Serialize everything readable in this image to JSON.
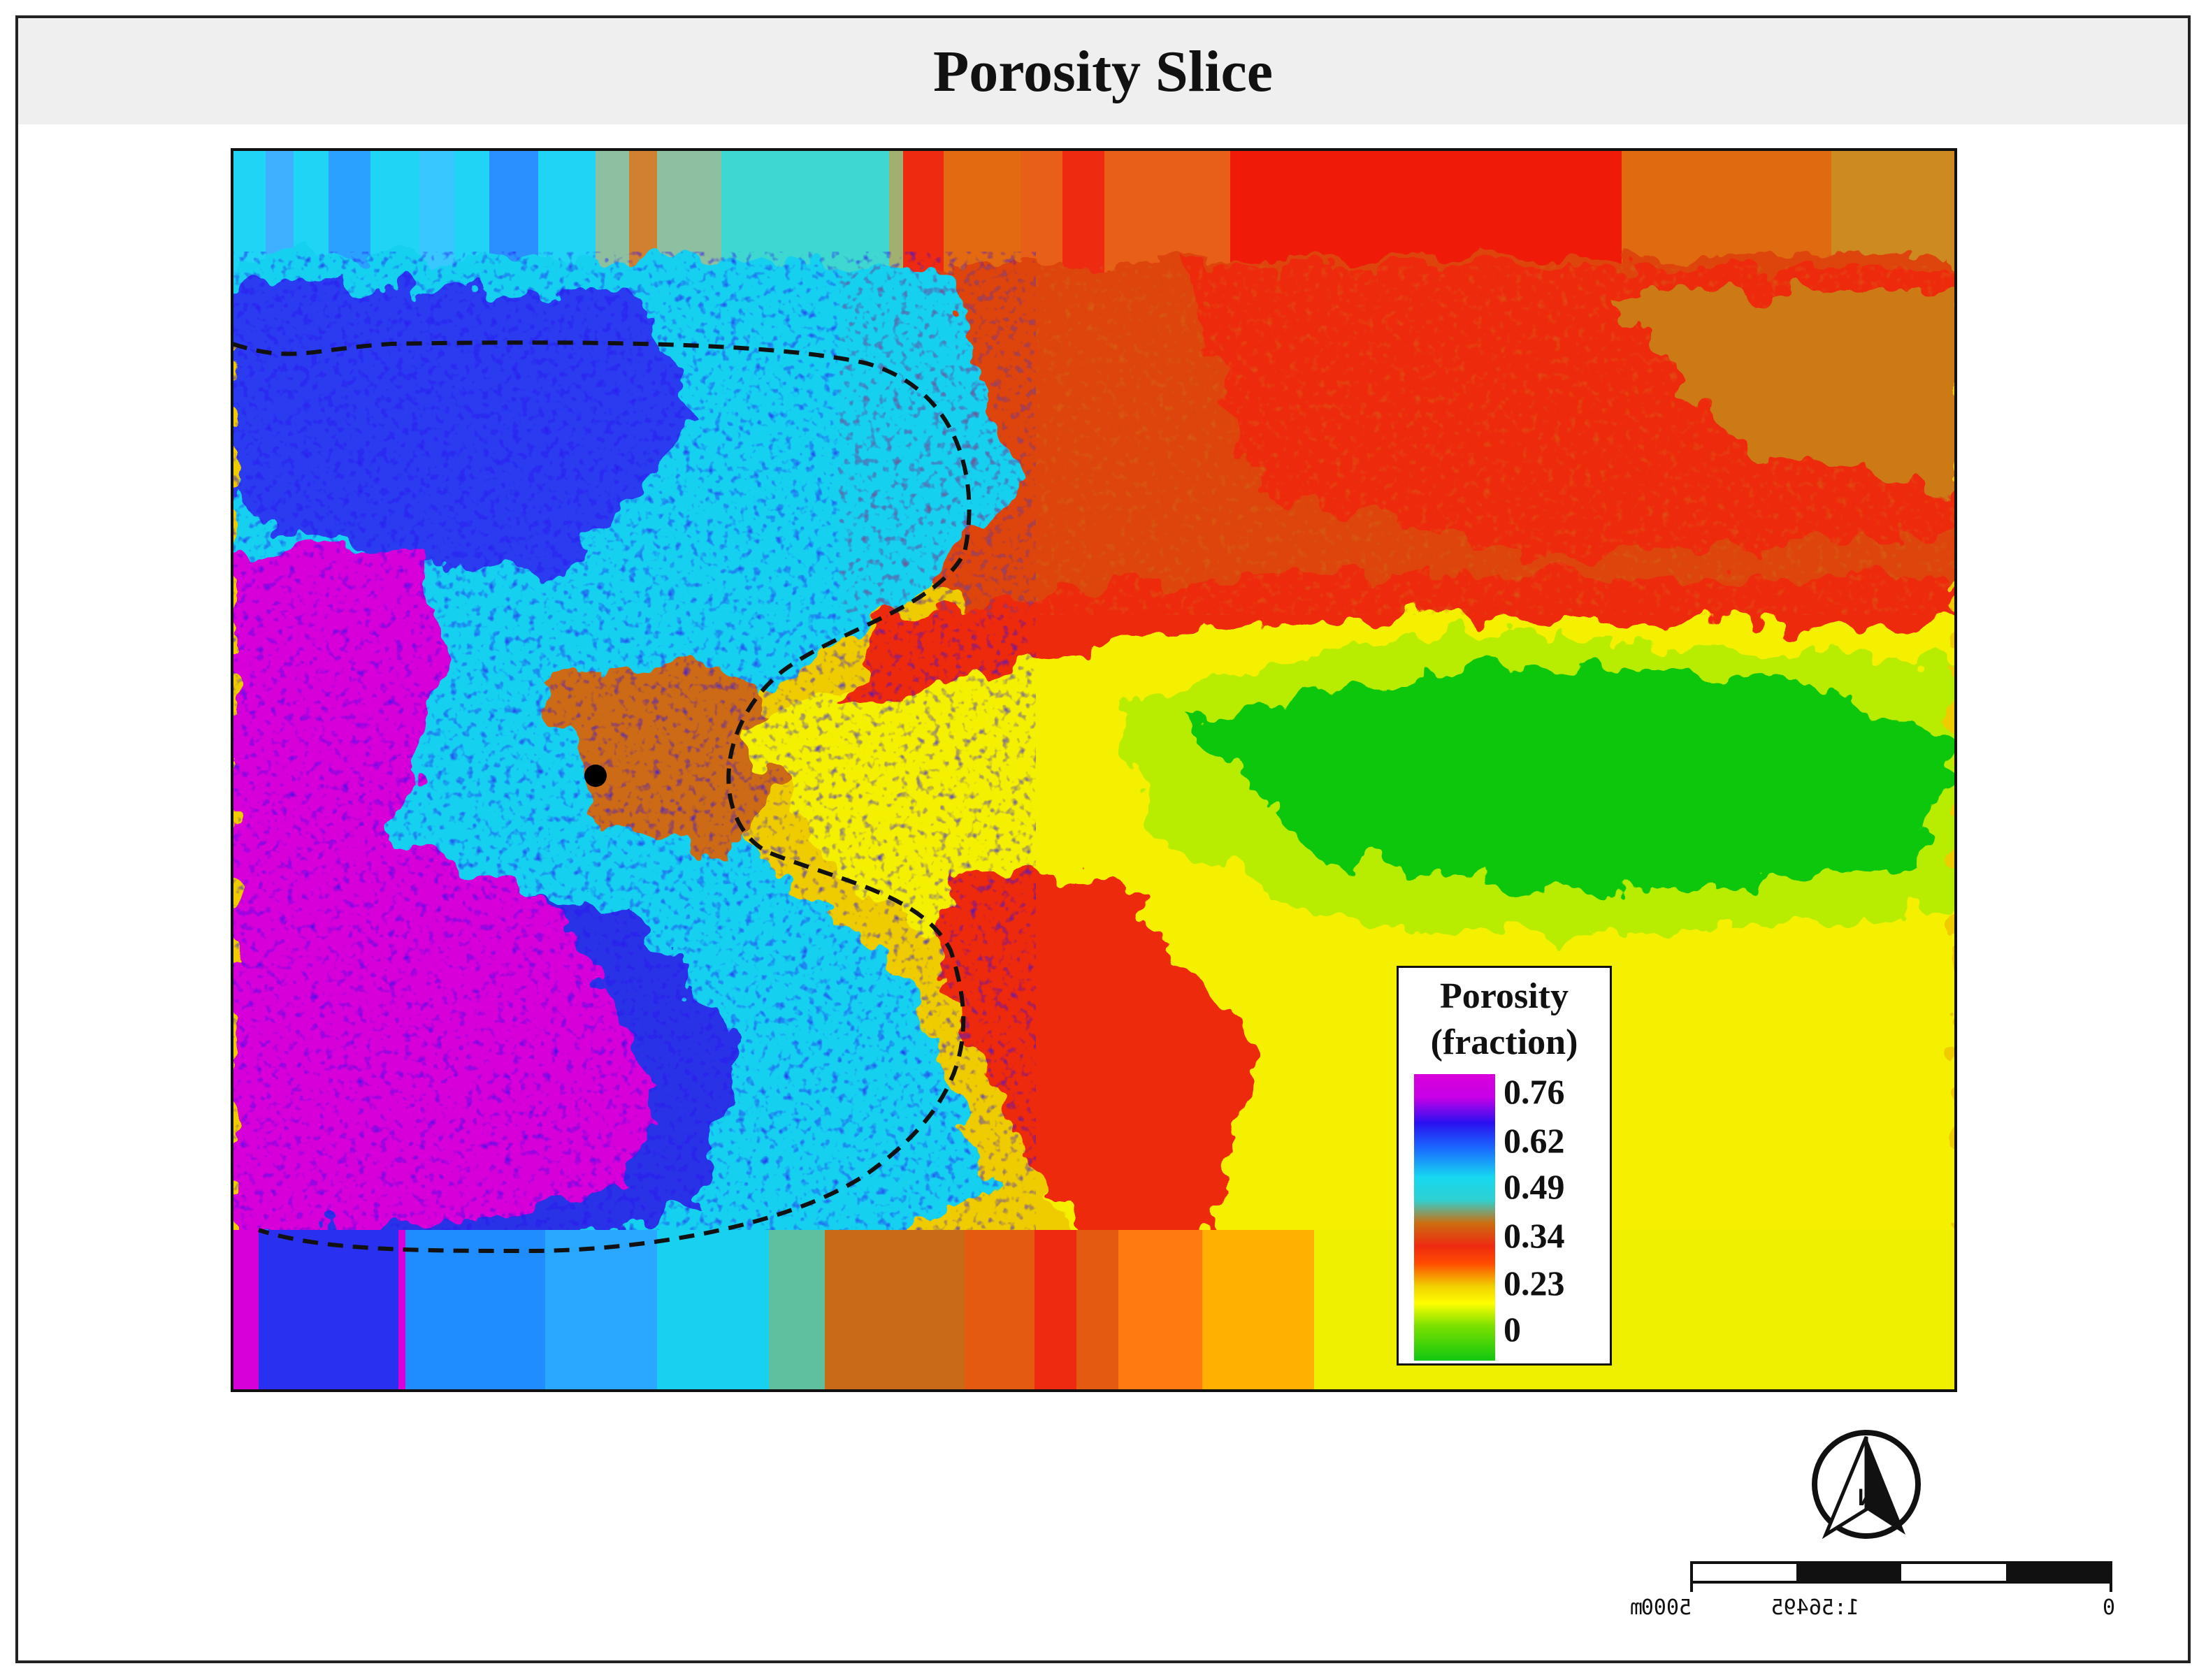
{
  "title": "Porosity Slice",
  "legend": {
    "title_line1": "Porosity",
    "title_line2": "(fraction)",
    "ticks": [
      "0.76",
      "0.62",
      "0.49",
      "0.34",
      "0.23",
      "0"
    ],
    "tick_values": [
      0.76,
      0.62,
      0.49,
      0.34,
      0.23,
      0
    ],
    "ramp_colors": [
      "#d800d8",
      "#2a10f0",
      "#17d8f0",
      "#cc6e10",
      "#ee2a10",
      "#ffff00",
      "#11c711"
    ]
  },
  "map": {
    "boundary_style": "dashed black outline",
    "marker": "black dot (well location)",
    "colors": {
      "magenta": "#d800d8",
      "blue": "#2a10f0",
      "cyan": "#17d8f0",
      "orange": "#cc6e10",
      "red": "#ee2a10",
      "yellow": "#f4f000",
      "green": "#11c711"
    }
  },
  "north_arrow": {
    "label": "N",
    "icon": "north-arrow-icon"
  },
  "scale_bar": {
    "labels": [
      "m",
      "5000",
      "1:56495",
      "0"
    ],
    "segments": 4
  }
}
